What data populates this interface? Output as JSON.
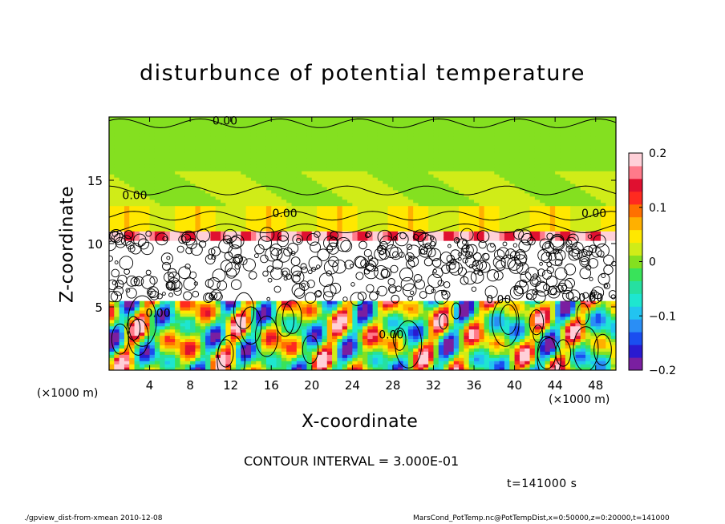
{
  "chart_data": {
    "type": "heatmap",
    "title": "disturbunce of potential temperature",
    "xlabel": "X-coordinate",
    "ylabel": "Z-coordinate",
    "x_unit": "(×1000 m)",
    "y_unit": "(×1000 m)",
    "xlim": [
      0,
      50
    ],
    "ylim": [
      0,
      20
    ],
    "x_ticks": [
      "4",
      "8",
      "12",
      "16",
      "20",
      "24",
      "28",
      "32",
      "36",
      "40",
      "44",
      "48"
    ],
    "y_ticks": [
      "5",
      "10",
      "15"
    ],
    "colorbar": {
      "min": -0.2,
      "max": 0.2,
      "ticks": [
        "0.2",
        "0.1",
        "0",
        "−0.1",
        "−0.2"
      ],
      "colors": [
        "#7a1fa0",
        "#2a1ad0",
        "#1a4ef0",
        "#2a8ef5",
        "#22c4f0",
        "#1ee6d0",
        "#26e0a0",
        "#39e35a",
        "#84e020",
        "#d0ec18",
        "#ffe800",
        "#ffb000",
        "#ff7000",
        "#ff2a20",
        "#e01030",
        "#ff7a8a",
        "#ffd0d8"
      ]
    },
    "contour_labels": [
      "0.00",
      "0.00",
      "0.00",
      "0.00",
      "0.00",
      "0.00",
      "0.00",
      "0.00"
    ],
    "contour_interval": "CONTOUR INTERVAL = 3.000E-01",
    "time": "t=141000 s"
  },
  "footer": {
    "left": "./gpview_dist-from-xmean  2010-12-08",
    "right": "MarsCond_PotTemp.nc@PotTempDist,x=0:50000,z=0:20000,t=141000"
  }
}
